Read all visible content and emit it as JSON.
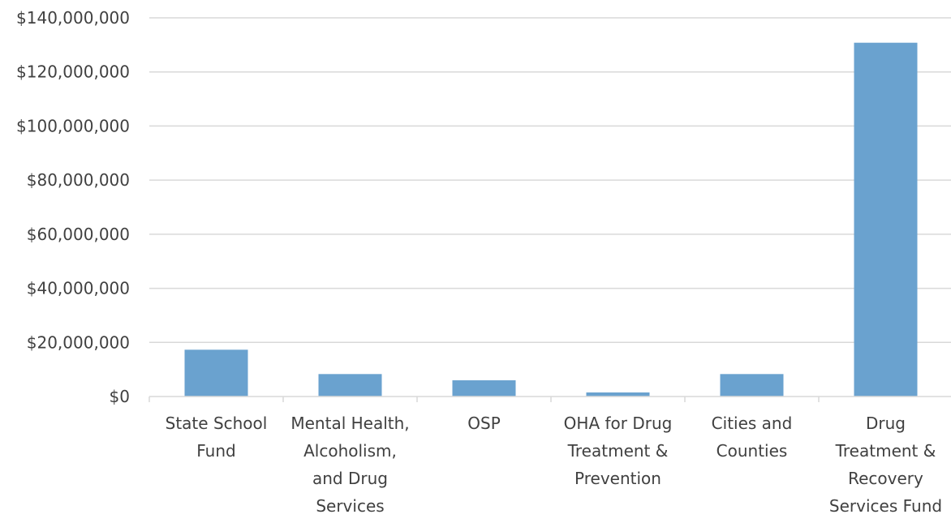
{
  "chart_data": {
    "type": "bar",
    "categories": [
      [
        "State School",
        "Fund"
      ],
      [
        "Mental Health,",
        "Alcoholism,",
        "and Drug",
        "Services"
      ],
      [
        "OSP"
      ],
      [
        "OHA for Drug",
        "Treatment &",
        "Prevention"
      ],
      [
        "Cities and",
        "Counties"
      ],
      [
        "Drug",
        "Treatment &",
        "Recovery",
        "Services Fund"
      ]
    ],
    "values": [
      17300000,
      8300000,
      6000000,
      1500000,
      8300000,
      130800000
    ],
    "ylim": [
      0,
      140000000
    ],
    "yticks": [
      0,
      20000000,
      40000000,
      60000000,
      80000000,
      100000000,
      120000000,
      140000000
    ],
    "ytick_labels": [
      "$0",
      "$20,000,000",
      "$40,000,000",
      "$60,000,000",
      "$80,000,000",
      "$100,000,000",
      "$120,000,000",
      "$140,000,000"
    ],
    "grid": true,
    "bar_color": "#6aa2cf",
    "title": "",
    "xlabel": "",
    "ylabel": ""
  }
}
